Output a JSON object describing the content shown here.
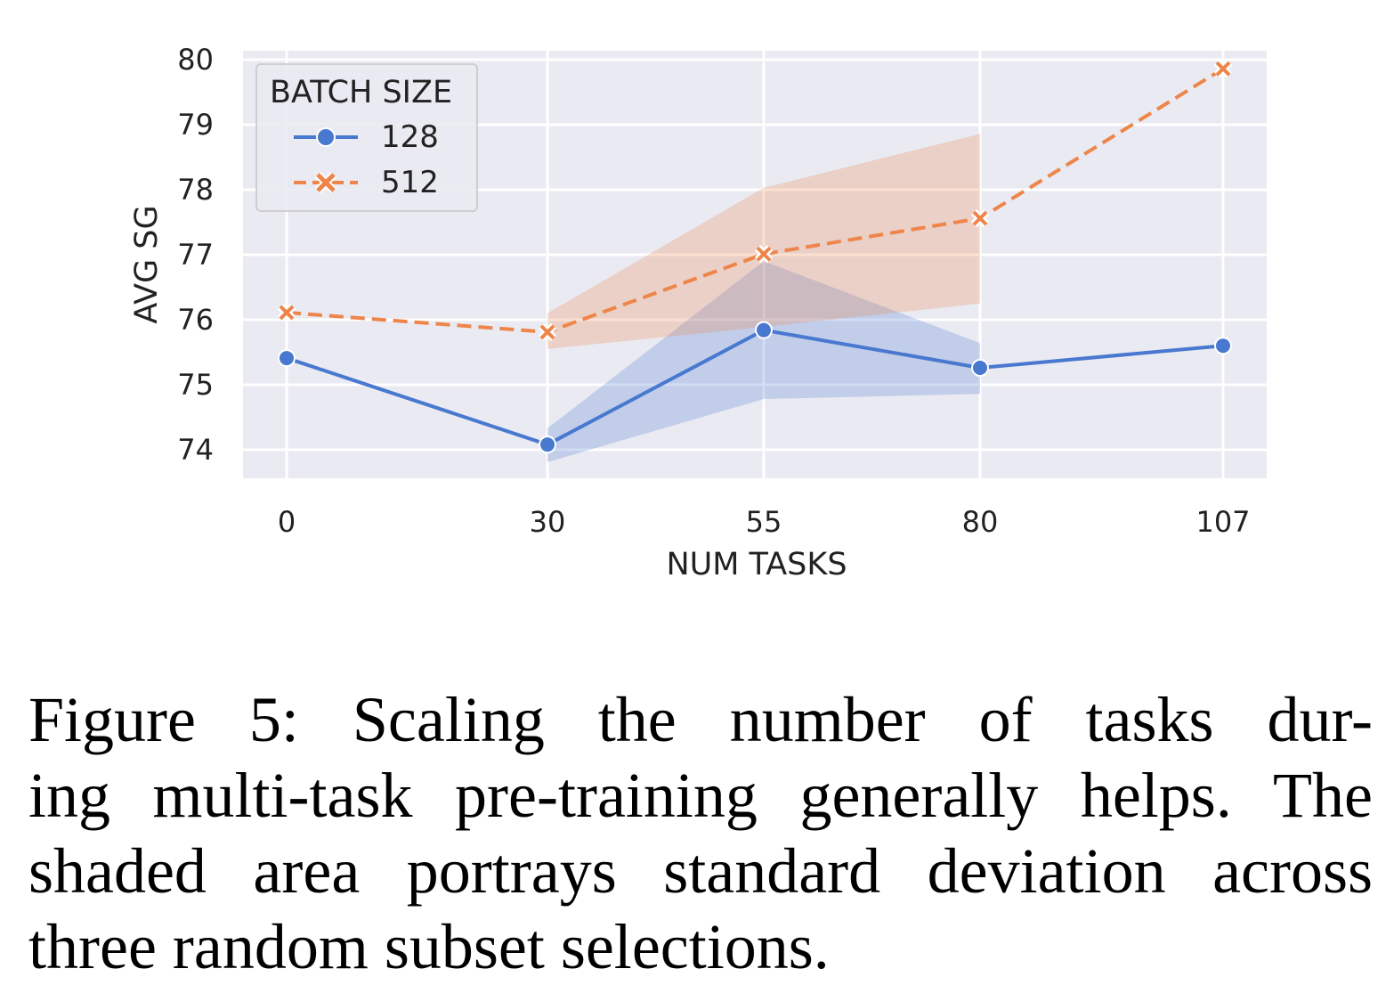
{
  "chart_data": {
    "type": "line",
    "x": [
      0,
      30,
      55,
      80,
      107
    ],
    "xtick_labels": [
      "0",
      "30",
      "55",
      "80",
      "107"
    ],
    "xlabel": "NUM TASKS",
    "ylabel": "AVG SG",
    "ylim": [
      73.6,
      80.15
    ],
    "yticks": [
      74,
      75,
      76,
      77,
      78,
      79,
      80
    ],
    "ytick_labels": [
      "74",
      "75",
      "76",
      "77",
      "78",
      "79",
      "80"
    ],
    "grid": true,
    "legend": {
      "title": "BATCH SIZE",
      "placement": "top-left"
    },
    "series": [
      {
        "name": "128",
        "color": "#4878d0",
        "marker": "circle",
        "dash": false,
        "values": [
          75.41,
          74.08,
          75.84,
          75.26,
          75.6
        ],
        "band_upper": [
          null,
          74.33,
          76.9,
          75.64,
          null
        ],
        "band_lower": [
          null,
          73.81,
          74.78,
          74.86,
          null
        ]
      },
      {
        "name": "512",
        "color": "#ee854a",
        "marker": "x",
        "dash": true,
        "values": [
          76.11,
          75.81,
          77.01,
          77.56,
          79.86
        ],
        "band_upper": [
          null,
          76.1,
          78.03,
          78.86,
          null
        ],
        "band_lower": [
          null,
          75.55,
          75.89,
          76.25,
          null
        ]
      }
    ]
  },
  "caption": {
    "lines": [
      "Figure 5:  Scaling the number of tasks dur-",
      "ing multi-task pre-training generally helps.  The",
      "shaded area portrays standard deviation across",
      "three random subset selections."
    ]
  }
}
